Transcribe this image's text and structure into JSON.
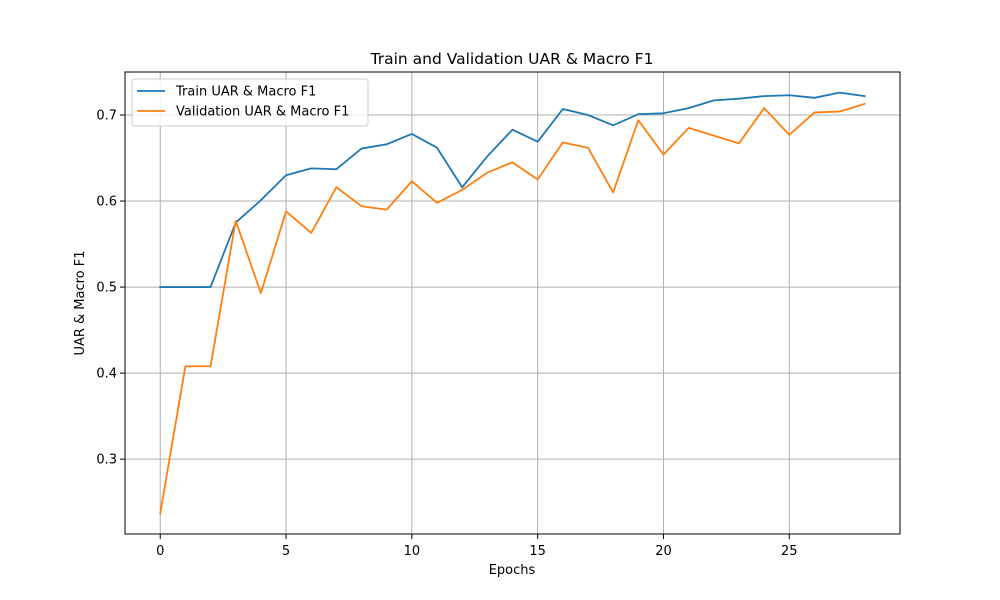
{
  "chart_data": {
    "type": "line",
    "title": "Train and Validation UAR & Macro F1",
    "xlabel": "Epochs",
    "ylabel": "UAR & Macro F1",
    "xlim": [
      -1.4,
      29.4
    ],
    "ylim": [
      0.213,
      0.75
    ],
    "xticks": [
      0,
      5,
      10,
      15,
      20,
      25
    ],
    "yticks": [
      0.3,
      0.4,
      0.5,
      0.6,
      0.7
    ],
    "xtick_labels": [
      "0",
      "5",
      "10",
      "15",
      "20",
      "25"
    ],
    "ytick_labels": [
      "0.3",
      "0.4",
      "0.5",
      "0.6",
      "0.7"
    ],
    "grid": true,
    "legend_position": "top-left",
    "x": [
      0,
      1,
      2,
      3,
      4,
      5,
      6,
      7,
      8,
      9,
      10,
      11,
      12,
      13,
      14,
      15,
      16,
      17,
      18,
      19,
      20,
      21,
      22,
      23,
      24,
      25,
      26,
      27,
      28
    ],
    "series": [
      {
        "name": "Train UAR & Macro F1",
        "color": "#1f77b4",
        "values": [
          0.5,
          0.5,
          0.5,
          0.575,
          0.601,
          0.63,
          0.638,
          0.637,
          0.661,
          0.666,
          0.678,
          0.662,
          0.616,
          0.652,
          0.683,
          0.669,
          0.707,
          0.7,
          0.688,
          0.701,
          0.702,
          0.708,
          0.717,
          0.719,
          0.722,
          0.723,
          0.72,
          0.726,
          0.722
        ]
      },
      {
        "name": "Validation UAR & Macro F1",
        "color": "#ff7f0e",
        "values": [
          0.237,
          0.408,
          0.408,
          0.577,
          0.493,
          0.588,
          0.563,
          0.616,
          0.594,
          0.59,
          0.623,
          0.598,
          0.613,
          0.633,
          0.645,
          0.625,
          0.668,
          0.662,
          0.61,
          0.694,
          0.654,
          0.685,
          0.676,
          0.667,
          0.708,
          0.677,
          0.703,
          0.704,
          0.713
        ]
      }
    ]
  }
}
